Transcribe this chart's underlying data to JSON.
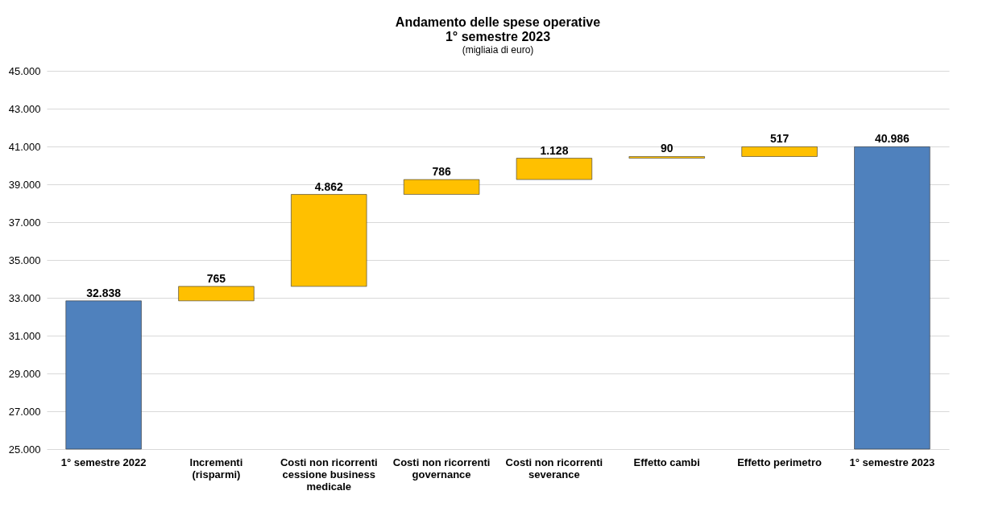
{
  "chart_data": {
    "type": "bar",
    "title": "Andamento delle spese operative 1° semestre 2023",
    "subtitle": "(migliaia di euro)",
    "categories": [
      "1° semestre 2022",
      "Incrementi (risparmi)",
      "Costi non ricorrenti cessione business medicale",
      "Costi non ricorrenti governance",
      "Costi non ricorrenti severance",
      "Effetto cambi",
      "Effetto perimetro",
      "1° semestre 2023"
    ],
    "values": [
      32838,
      765,
      4862,
      786,
      1128,
      90,
      517,
      40986
    ],
    "base": [
      null,
      32838,
      33603,
      38465,
      39251,
      40379,
      40469,
      null
    ],
    "colors": [
      "#4f81bd",
      "#ffc000",
      "#ffc000",
      "#ffc000",
      "#ffc000",
      "#ffc000",
      "#ffc000",
      "#4f81bd"
    ],
    "value_labels": [
      "32.838",
      "765",
      "4.862",
      "786",
      "1.128",
      "90",
      "517",
      "40.986"
    ],
    "ylim": [
      25000,
      45000
    ],
    "yticks": [
      {
        "value": 25000,
        "label": "25.000"
      },
      {
        "value": 27000,
        "label": "27.000"
      },
      {
        "value": 29000,
        "label": "29.000"
      },
      {
        "value": 31000,
        "label": "31.000"
      },
      {
        "value": 33000,
        "label": "33.000"
      },
      {
        "value": 35000,
        "label": "35.000"
      },
      {
        "value": 37000,
        "label": "37.000"
      },
      {
        "value": 39000,
        "label": "39.000"
      },
      {
        "value": 41000,
        "label": "41.000"
      },
      {
        "value": 43000,
        "label": "43.000"
      },
      {
        "value": 45000,
        "label": "45.000"
      }
    ],
    "grid": "y"
  }
}
